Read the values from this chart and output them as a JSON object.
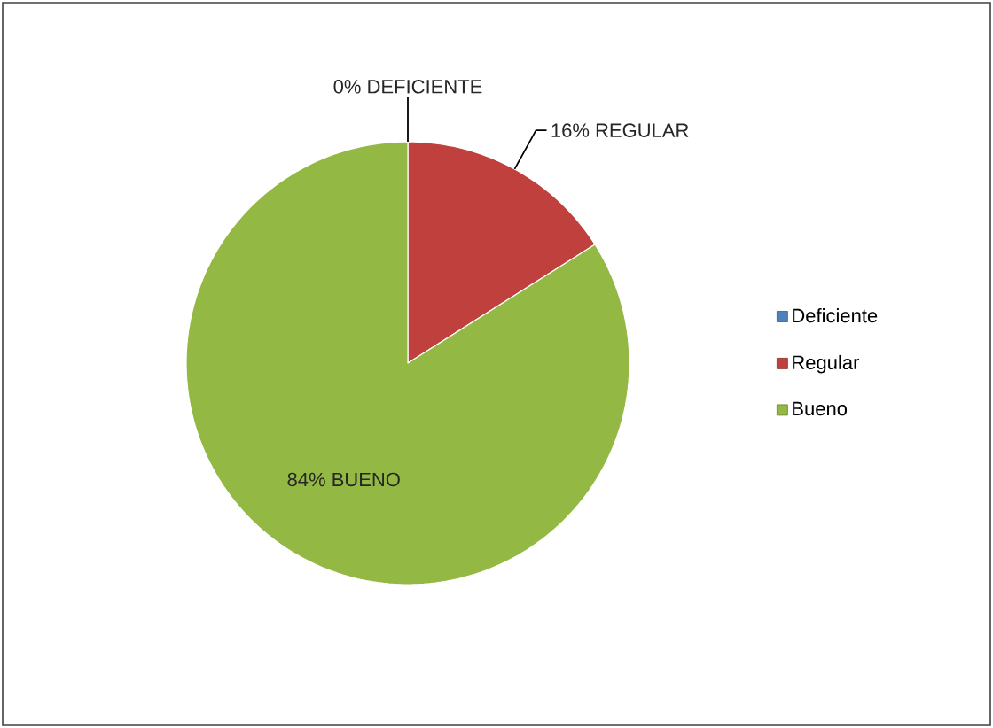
{
  "chart_data": {
    "type": "pie",
    "categories": [
      "Deficiente",
      "Regular",
      "Bueno"
    ],
    "values": [
      0,
      16,
      84
    ],
    "colors": [
      "#4f81bd",
      "#c0403d",
      "#94b844"
    ],
    "value_labels": [
      "0%  DEFICIENTE",
      "16% REGULAR",
      "84%  BUENO"
    ],
    "legend": "right"
  }
}
